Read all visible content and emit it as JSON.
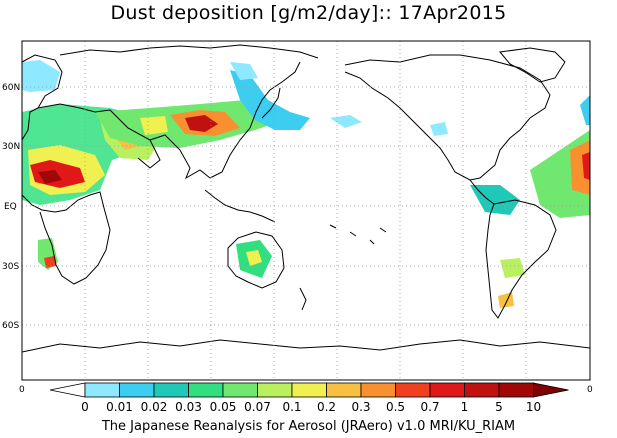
{
  "title": "Dust deposition [g/m2/day]:: 17Apr2015",
  "credit": "The Japanese Reanalysis for Aerosol (JRAero) v1.0 MRI/KU_RIAM",
  "lat_labels": [
    "60N",
    "30N",
    "EQ",
    "30S",
    "60S"
  ],
  "lon_edge_labels": [
    "0",
    "0"
  ],
  "colorbar": {
    "labels": [
      "0",
      "0.01",
      "0.02",
      "0.03",
      "0.05",
      "0.07",
      "0.1",
      "0.2",
      "0.3",
      "0.5",
      "0.7",
      "1",
      "5",
      "10"
    ],
    "colors": [
      "#ffffff",
      "#8ee8ff",
      "#3ccdf0",
      "#20c8b8",
      "#30e080",
      "#70e870",
      "#b8f060",
      "#f0f050",
      "#f8c040",
      "#f89030",
      "#f04020",
      "#e01818",
      "#c01010",
      "#a00808",
      "#800000"
    ]
  }
}
